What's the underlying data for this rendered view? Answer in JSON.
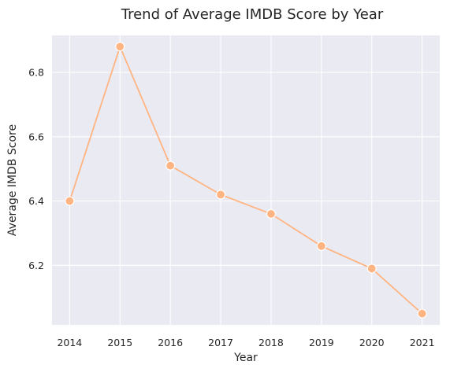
{
  "chart_data": {
    "type": "line",
    "title": "Trend of Average IMDB Score by Year",
    "xlabel": "Year",
    "ylabel": "Average IMDB Score",
    "x": [
      2014,
      2015,
      2016,
      2017,
      2018,
      2019,
      2020,
      2021
    ],
    "xlim": [
      2013.65,
      2021.35
    ],
    "ylim": [
      6.015,
      6.915
    ],
    "yticks": [
      6.2,
      6.4,
      6.6,
      6.8
    ],
    "ytick_labels": [
      "6.2",
      "6.4",
      "6.6",
      "6.8"
    ],
    "xtick_labels": [
      "2014",
      "2015",
      "2016",
      "2017",
      "2018",
      "2019",
      "2020",
      "2021"
    ],
    "grid": true,
    "legend": "none",
    "series": [
      {
        "values": [
          6.4,
          6.88,
          6.51,
          6.42,
          6.36,
          6.26,
          6.19,
          6.05
        ],
        "color": "#ffb482"
      }
    ],
    "colors": {
      "background": "#eaeaf2",
      "grid": "#ffffff",
      "line": "#ffb482",
      "marker_edge": "#ffffff"
    }
  }
}
